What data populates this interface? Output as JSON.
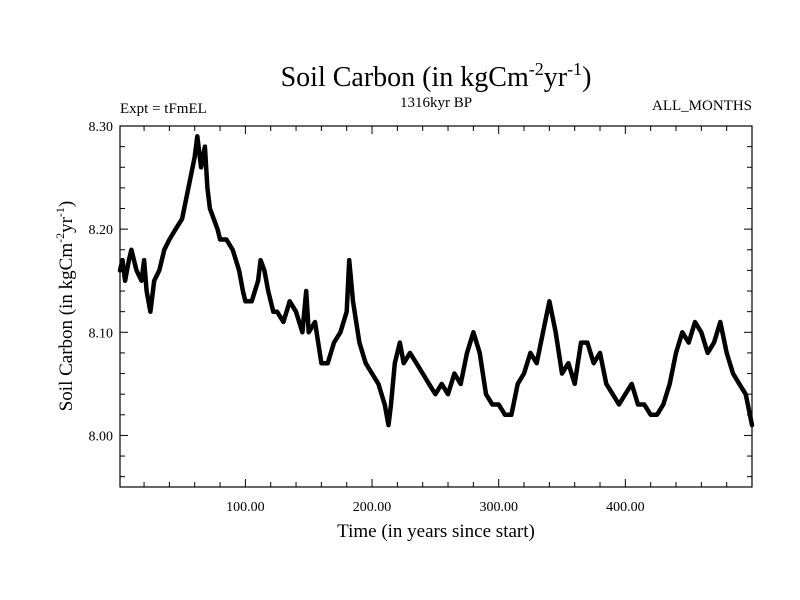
{
  "chart_data": {
    "type": "line",
    "title": "Soil Carbon (in kgCm",
    "title_sup1": "-2",
    "title_mid": "yr",
    "title_sup2": "-1",
    "title_end": ")",
    "subtitle_left": "Expt = tFmEL",
    "subtitle_center": "1316kyr BP",
    "subtitle_right": "ALL_MONTHS",
    "xlabel": "Time (in years since start)",
    "ylabel": "Soil Carbon (in kgCm",
    "ylabel_sup1": "-2",
    "ylabel_mid": "yr",
    "ylabel_sup2": "-1",
    "ylabel_end": ")",
    "xlim": [
      1,
      500
    ],
    "ylim": [
      7.95,
      8.3
    ],
    "xticks": [
      100,
      200,
      300,
      400
    ],
    "xtick_labels": [
      "100.00",
      "200.00",
      "300.00",
      "400.00"
    ],
    "yticks": [
      8.0,
      8.1,
      8.2,
      8.3
    ],
    "ytick_labels": [
      "8.00",
      "8.10",
      "8.20",
      "8.30"
    ],
    "grid": false,
    "line_color": "#000000",
    "x": [
      1,
      3,
      5,
      8,
      10,
      14,
      18,
      20,
      22,
      25,
      28,
      32,
      36,
      40,
      45,
      50,
      55,
      60,
      62,
      65,
      68,
      70,
      72,
      75,
      78,
      80,
      85,
      90,
      95,
      98,
      100,
      105,
      110,
      112,
      115,
      118,
      122,
      125,
      130,
      135,
      140,
      145,
      148,
      150,
      155,
      160,
      165,
      170,
      175,
      180,
      182,
      185,
      190,
      195,
      200,
      205,
      210,
      213,
      215,
      218,
      222,
      225,
      230,
      235,
      240,
      245,
      250,
      255,
      260,
      265,
      270,
      275,
      280,
      285,
      290,
      295,
      300,
      305,
      310,
      315,
      320,
      325,
      330,
      335,
      340,
      345,
      350,
      355,
      360,
      365,
      370,
      375,
      380,
      385,
      390,
      395,
      400,
      405,
      410,
      415,
      420,
      425,
      430,
      435,
      440,
      445,
      450,
      455,
      460,
      465,
      470,
      475,
      480,
      485,
      490,
      495,
      500
    ],
    "y": [
      8.16,
      8.17,
      8.15,
      8.17,
      8.18,
      8.16,
      8.15,
      8.17,
      8.14,
      8.12,
      8.15,
      8.16,
      8.18,
      8.19,
      8.2,
      8.21,
      8.24,
      8.27,
      8.29,
      8.26,
      8.28,
      8.24,
      8.22,
      8.21,
      8.2,
      8.19,
      8.19,
      8.18,
      8.16,
      8.14,
      8.13,
      8.13,
      8.15,
      8.17,
      8.16,
      8.14,
      8.12,
      8.12,
      8.11,
      8.13,
      8.12,
      8.1,
      8.14,
      8.1,
      8.11,
      8.07,
      8.07,
      8.09,
      8.1,
      8.12,
      8.17,
      8.13,
      8.09,
      8.07,
      8.06,
      8.05,
      8.03,
      8.01,
      8.03,
      8.07,
      8.09,
      8.07,
      8.08,
      8.07,
      8.06,
      8.05,
      8.04,
      8.05,
      8.04,
      8.06,
      8.05,
      8.08,
      8.1,
      8.08,
      8.04,
      8.03,
      8.03,
      8.02,
      8.02,
      8.05,
      8.06,
      8.08,
      8.07,
      8.1,
      8.13,
      8.1,
      8.06,
      8.07,
      8.05,
      8.09,
      8.09,
      8.07,
      8.08,
      8.05,
      8.04,
      8.03,
      8.04,
      8.05,
      8.03,
      8.03,
      8.02,
      8.02,
      8.03,
      8.05,
      8.08,
      8.1,
      8.09,
      8.11,
      8.1,
      8.08,
      8.09,
      8.11,
      8.08,
      8.06,
      8.05,
      8.04,
      8.01
    ]
  }
}
